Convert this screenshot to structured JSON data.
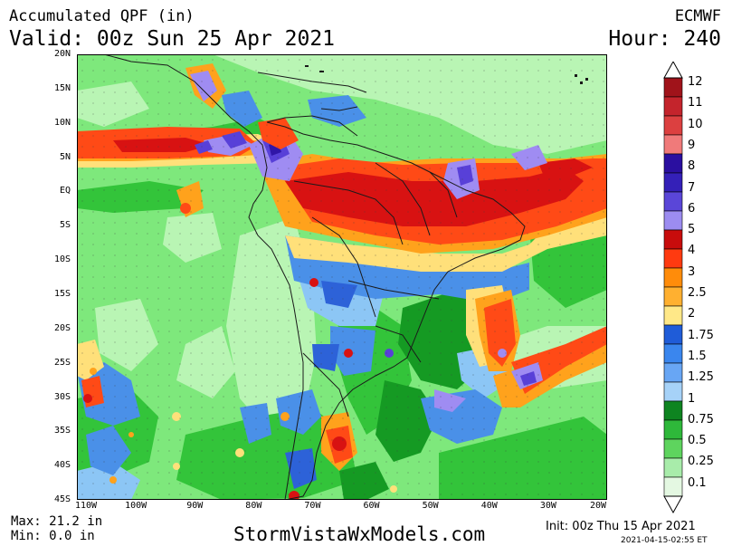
{
  "header": {
    "title": "Accumulated QPF (in)",
    "valid": "Valid: 00z Sun 25 Apr 2021",
    "model": "ECMWF",
    "hour": "Hour: 240"
  },
  "map": {
    "lat_labels": [
      "20N",
      "15N",
      "10N",
      "5N",
      "EQ",
      "5S",
      "10S",
      "15S",
      "20S",
      "25S",
      "30S",
      "35S",
      "40S",
      "45S"
    ],
    "lon_labels": [
      "110W",
      "100W",
      "90W",
      "80W",
      "70W",
      "60W",
      "50W",
      "40W",
      "30W",
      "20W"
    ],
    "colors": {
      "ocean_base": "#7ee87c",
      "light_green": "#b9f5b4",
      "mid_green": "#33c43a",
      "dark_green": "#159a23",
      "light_blue": "#8cc6f5",
      "mid_blue": "#4a90e8",
      "dark_blue": "#2d62d8",
      "yellow": "#ffe07a",
      "orange": "#ffa21c",
      "orange_red": "#ff4a16",
      "red": "#d81212",
      "lavender": "#9f8cf2",
      "purple": "#5840d8",
      "indigo": "#3016a8"
    }
  },
  "legend": {
    "labels": [
      "12",
      "11",
      "10",
      "9",
      "8",
      "7",
      "6",
      "5",
      "4",
      "3",
      "2.5",
      "2",
      "1.75",
      "1.5",
      "1.25",
      "1",
      "0.75",
      "0.5",
      "0.25",
      "0.1"
    ],
    "colors": [
      "#a0131a",
      "#c4242c",
      "#dc4040",
      "#f07a7a",
      "#2a0fa0",
      "#3420b8",
      "#5a46d8",
      "#9c8cf0",
      "#c80c0c",
      "#ff3a10",
      "#ff8c0a",
      "#ffb030",
      "#ffe888",
      "#1f5cd8",
      "#3a86ee",
      "#68a6f4",
      "#a6d2f8",
      "#0e8420",
      "#2eb83a",
      "#5ed45e",
      "#a8ecaa",
      "#e4f8e2"
    ]
  },
  "footer": {
    "max": "Max: 21.2 in",
    "min": "Min: 0.0 in",
    "brand": "StormVistaWxModels.com",
    "init": "Init: 00z Thu 15 Apr 2021",
    "timestamp": "2021-04-15-02:55 ET"
  }
}
